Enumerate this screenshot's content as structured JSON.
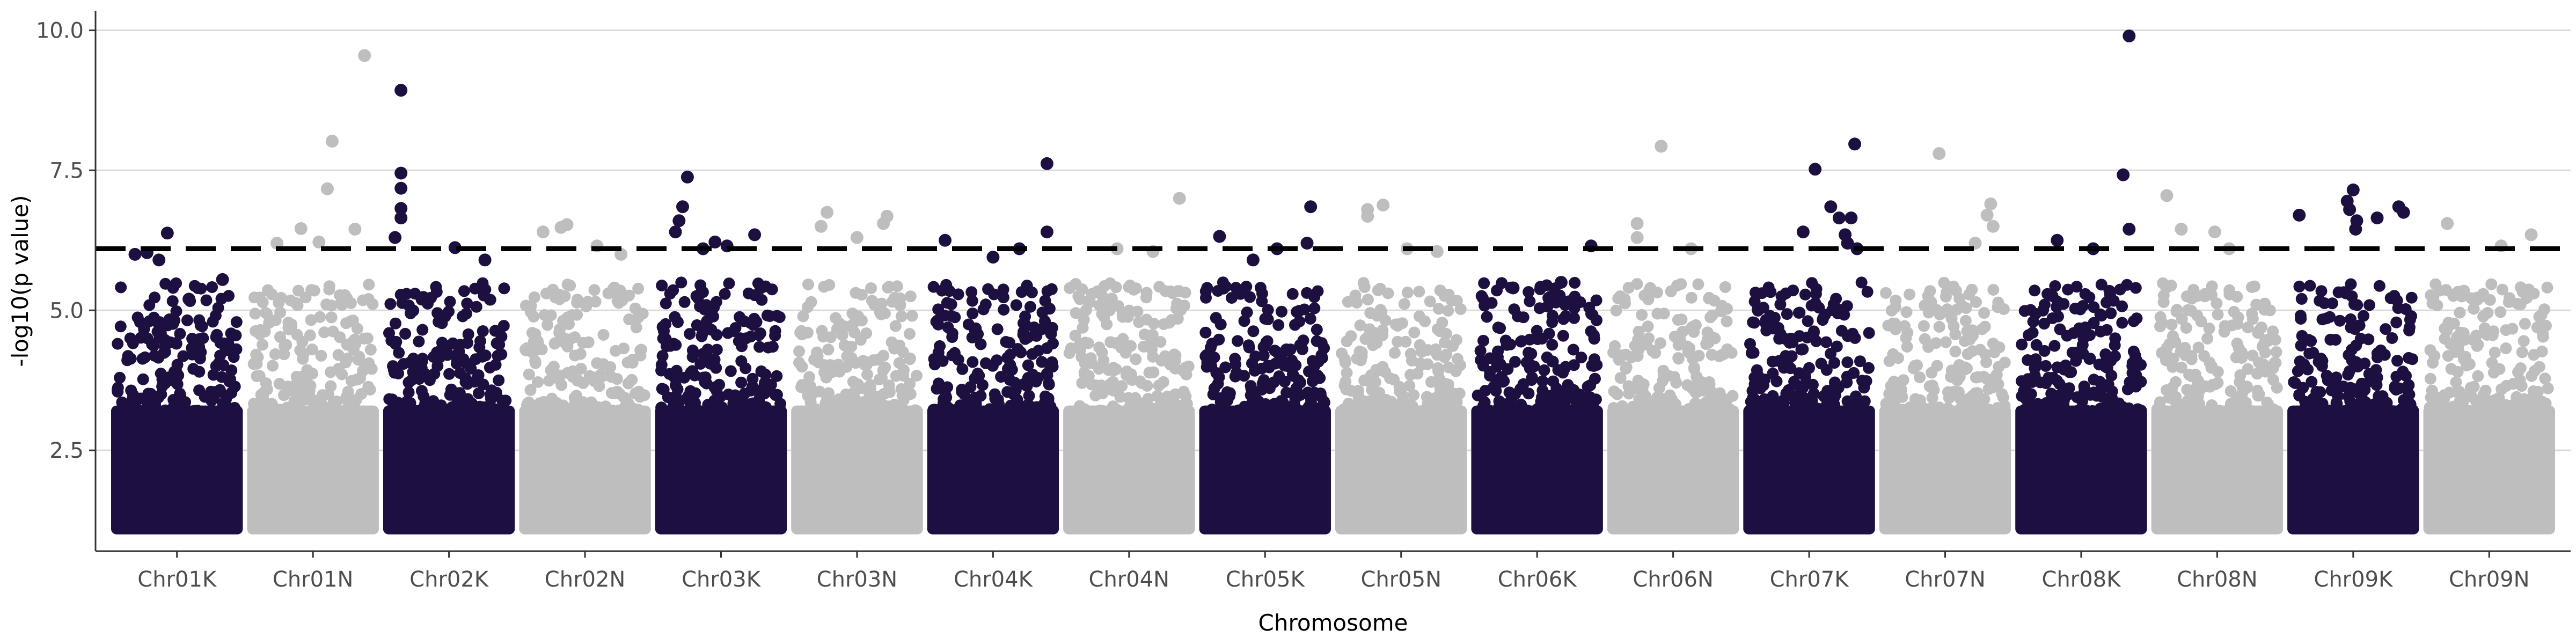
{
  "chart_data": {
    "type": "scatter",
    "subtype": "manhattan",
    "xlabel": "Chromosome",
    "ylabel": "-log10(p value)",
    "ylim": [
      0.7,
      10.35
    ],
    "yticks": [
      2.5,
      5.0,
      7.5,
      10.0
    ],
    "ytick_labels": [
      "2.5",
      "5.0",
      "7.5",
      "10.0"
    ],
    "grid": "horizontal major lines at y ticks",
    "threshold_line": {
      "value": 6.1,
      "style": "dashed",
      "color": "#000000"
    },
    "colors": {
      "odd_chromosomes": "#1d1040",
      "even_chromosomes": "#bebebe",
      "grid": "#d9d9d9",
      "axis": "#333333"
    },
    "series": [
      {
        "chromosome": "Chr01K",
        "color": "#1d1040",
        "points": [
          [
            0.25,
            6.03
          ],
          [
            0.42,
            6.38
          ],
          [
            0.88,
            5.55
          ],
          [
            0.15,
            6.0
          ],
          [
            0.6,
            5.2
          ],
          [
            0.35,
            5.9
          ]
        ]
      },
      {
        "chromosome": "Chr01N",
        "color": "#bebebe",
        "points": [
          [
            0.93,
            9.55
          ],
          [
            0.66,
            8.02
          ],
          [
            0.62,
            7.17
          ],
          [
            0.85,
            6.45
          ],
          [
            0.4,
            6.46
          ],
          [
            0.2,
            6.2
          ],
          [
            0.55,
            6.22
          ]
        ]
      },
      {
        "chromosome": "Chr02K",
        "color": "#1d1040",
        "points": [
          [
            0.1,
            8.93
          ],
          [
            0.1,
            7.45
          ],
          [
            0.1,
            7.18
          ],
          [
            0.1,
            6.82
          ],
          [
            0.1,
            6.65
          ],
          [
            0.05,
            6.3
          ],
          [
            0.55,
            6.12
          ],
          [
            0.8,
            5.9
          ]
        ]
      },
      {
        "chromosome": "Chr02N",
        "color": "#bebebe",
        "points": [
          [
            0.15,
            6.4
          ],
          [
            0.3,
            6.48
          ],
          [
            0.35,
            6.53
          ],
          [
            0.6,
            6.15
          ],
          [
            0.8,
            6.0
          ]
        ]
      },
      {
        "chromosome": "Chr03K",
        "color": "#1d1040",
        "points": [
          [
            0.22,
            7.38
          ],
          [
            0.18,
            6.85
          ],
          [
            0.15,
            6.6
          ],
          [
            0.12,
            6.4
          ],
          [
            0.45,
            6.22
          ],
          [
            0.55,
            6.15
          ],
          [
            0.78,
            6.35
          ],
          [
            0.35,
            6.1
          ]
        ]
      },
      {
        "chromosome": "Chr03N",
        "color": "#bebebe",
        "points": [
          [
            0.25,
            6.75
          ],
          [
            0.2,
            6.5
          ],
          [
            0.75,
            6.68
          ],
          [
            0.72,
            6.55
          ],
          [
            0.5,
            6.3
          ]
        ]
      },
      {
        "chromosome": "Chr04K",
        "color": "#1d1040",
        "points": [
          [
            0.95,
            7.62
          ],
          [
            0.72,
            6.1
          ],
          [
            0.1,
            6.25
          ],
          [
            0.95,
            6.4
          ],
          [
            0.5,
            5.95
          ]
        ]
      },
      {
        "chromosome": "Chr04N",
        "color": "#bebebe",
        "points": [
          [
            0.92,
            7.0
          ],
          [
            0.4,
            6.1
          ],
          [
            0.7,
            6.05
          ]
        ]
      },
      {
        "chromosome": "Chr05K",
        "color": "#1d1040",
        "points": [
          [
            0.12,
            6.32
          ],
          [
            0.88,
            6.85
          ],
          [
            0.85,
            6.2
          ],
          [
            0.6,
            6.1
          ],
          [
            0.4,
            5.9
          ]
        ]
      },
      {
        "chromosome": "Chr05N",
        "color": "#bebebe",
        "points": [
          [
            0.22,
            6.68
          ],
          [
            0.22,
            6.8
          ],
          [
            0.35,
            6.88
          ],
          [
            0.55,
            6.1
          ],
          [
            0.8,
            6.05
          ]
        ]
      },
      {
        "chromosome": "Chr06K",
        "color": "#1d1040",
        "points": [
          [
            0.95,
            6.15
          ],
          [
            0.7,
            5.5
          ],
          [
            0.3,
            5.4
          ]
        ]
      },
      {
        "chromosome": "Chr06N",
        "color": "#bebebe",
        "points": [
          [
            0.4,
            7.93
          ],
          [
            0.2,
            6.55
          ],
          [
            0.2,
            6.3
          ],
          [
            0.65,
            6.1
          ]
        ]
      },
      {
        "chromosome": "Chr07K",
        "color": "#1d1040",
        "points": [
          [
            0.88,
            7.97
          ],
          [
            0.55,
            7.52
          ],
          [
            0.68,
            6.85
          ],
          [
            0.75,
            6.65
          ],
          [
            0.85,
            6.65
          ],
          [
            0.45,
            6.4
          ],
          [
            0.8,
            6.35
          ],
          [
            0.82,
            6.2
          ],
          [
            0.9,
            6.1
          ]
        ]
      },
      {
        "chromosome": "Chr07N",
        "color": "#bebebe",
        "points": [
          [
            0.45,
            7.8
          ],
          [
            0.88,
            6.9
          ],
          [
            0.85,
            6.7
          ],
          [
            0.9,
            6.5
          ],
          [
            0.75,
            6.2
          ]
        ]
      },
      {
        "chromosome": "Chr08K",
        "color": "#1d1040",
        "points": [
          [
            0.9,
            9.9
          ],
          [
            0.85,
            7.42
          ],
          [
            0.9,
            6.45
          ],
          [
            0.3,
            6.25
          ],
          [
            0.6,
            6.1
          ]
        ]
      },
      {
        "chromosome": "Chr08N",
        "color": "#bebebe",
        "points": [
          [
            0.08,
            7.05
          ],
          [
            0.2,
            6.45
          ],
          [
            0.48,
            6.4
          ],
          [
            0.6,
            6.1
          ]
        ]
      },
      {
        "chromosome": "Chr09K",
        "color": "#1d1040",
        "points": [
          [
            0.5,
            7.15
          ],
          [
            0.45,
            6.95
          ],
          [
            0.47,
            6.8
          ],
          [
            0.53,
            6.6
          ],
          [
            0.88,
            6.85
          ],
          [
            0.92,
            6.75
          ],
          [
            0.7,
            6.65
          ],
          [
            0.05,
            6.7
          ],
          [
            0.52,
            6.45
          ]
        ]
      },
      {
        "chromosome": "Chr09N",
        "color": "#bebebe",
        "points": [
          [
            0.85,
            6.35
          ],
          [
            0.15,
            6.55
          ],
          [
            0.6,
            6.15
          ]
        ]
      }
    ]
  }
}
